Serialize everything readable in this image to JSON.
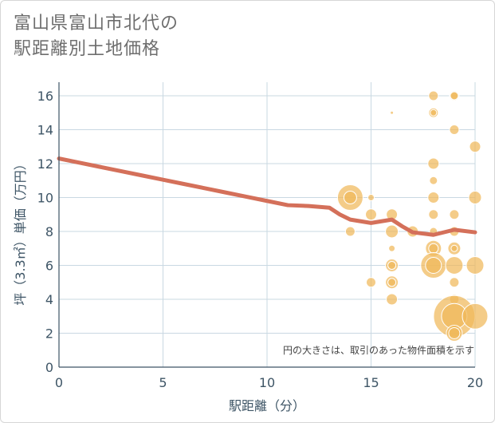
{
  "title_line1": "富山県富山市北代の",
  "title_line2": "駅距離別土地価格",
  "chart_data": {
    "type": "scatter",
    "title": "富山県富山市北代の駅距離別土地価格",
    "xlabel": "駅距離（分）",
    "ylabel": "坪（3.3㎡）単価（万円）",
    "xlim": [
      0,
      20
    ],
    "ylim": [
      0,
      16.8
    ],
    "xticks": [
      0,
      5,
      10,
      15,
      20
    ],
    "yticks": [
      0,
      2,
      4,
      6,
      8,
      10,
      12,
      14,
      16
    ],
    "note": "円の大きさは、取引のあった物件面積を示す",
    "colors": {
      "bubble": "#f0b95a",
      "line": "#d4705a",
      "grid": "#c9d8e2",
      "axis": "#3e5566"
    },
    "trend": {
      "x": [
        0,
        1,
        2,
        3,
        4,
        5,
        6,
        7,
        8,
        9,
        10,
        11,
        12,
        13,
        13.5,
        14,
        15,
        16,
        16.5,
        17,
        18,
        19,
        20
      ],
      "y": [
        12.3,
        12.05,
        11.8,
        11.55,
        11.3,
        11.05,
        10.8,
        10.55,
        10.3,
        10.05,
        9.8,
        9.55,
        9.5,
        9.4,
        9.0,
        8.7,
        8.5,
        8.7,
        8.3,
        7.95,
        7.8,
        8.1,
        7.95
      ]
    },
    "points": [
      {
        "x": 14,
        "y": 10,
        "r": 16
      },
      {
        "x": 14,
        "y": 10,
        "r": 8
      },
      {
        "x": 14,
        "y": 8,
        "r": 6
      },
      {
        "x": 15,
        "y": 10,
        "r": 4
      },
      {
        "x": 15,
        "y": 9,
        "r": 7
      },
      {
        "x": 15,
        "y": 5,
        "r": 6
      },
      {
        "x": 16,
        "y": 15,
        "r": 2
      },
      {
        "x": 16,
        "y": 9,
        "r": 7
      },
      {
        "x": 16,
        "y": 8,
        "r": 8
      },
      {
        "x": 16,
        "y": 7,
        "r": 4
      },
      {
        "x": 16,
        "y": 6,
        "r": 8
      },
      {
        "x": 16,
        "y": 6,
        "r": 5
      },
      {
        "x": 16,
        "y": 5,
        "r": 8
      },
      {
        "x": 16,
        "y": 5,
        "r": 5
      },
      {
        "x": 16,
        "y": 4,
        "r": 7
      },
      {
        "x": 17,
        "y": 8,
        "r": 7
      },
      {
        "x": 18,
        "y": 16,
        "r": 6
      },
      {
        "x": 18,
        "y": 15,
        "r": 6
      },
      {
        "x": 18,
        "y": 15,
        "r": 4
      },
      {
        "x": 18,
        "y": 12,
        "r": 7
      },
      {
        "x": 18,
        "y": 11,
        "r": 5
      },
      {
        "x": 18,
        "y": 10,
        "r": 7
      },
      {
        "x": 18,
        "y": 9,
        "r": 6
      },
      {
        "x": 18,
        "y": 8,
        "r": 5
      },
      {
        "x": 18,
        "y": 7,
        "r": 10
      },
      {
        "x": 18,
        "y": 7,
        "r": 6
      },
      {
        "x": 18,
        "y": 6,
        "r": 16
      },
      {
        "x": 18,
        "y": 6,
        "r": 10
      },
      {
        "x": 19,
        "y": 16,
        "r": 6
      },
      {
        "x": 19,
        "y": 16,
        "r": 5
      },
      {
        "x": 19,
        "y": 14,
        "r": 6
      },
      {
        "x": 19,
        "y": 9,
        "r": 6
      },
      {
        "x": 19,
        "y": 8,
        "r": 6
      },
      {
        "x": 19,
        "y": 7,
        "r": 8
      },
      {
        "x": 19,
        "y": 7,
        "r": 4
      },
      {
        "x": 19,
        "y": 6,
        "r": 11
      },
      {
        "x": 19,
        "y": 5,
        "r": 6
      },
      {
        "x": 19,
        "y": 4,
        "r": 6
      },
      {
        "x": 19,
        "y": 3,
        "r": 26
      },
      {
        "x": 19,
        "y": 3,
        "r": 16
      },
      {
        "x": 19,
        "y": 2,
        "r": 10
      },
      {
        "x": 19,
        "y": 2,
        "r": 7
      },
      {
        "x": 20,
        "y": 13,
        "r": 7
      },
      {
        "x": 20,
        "y": 10,
        "r": 8
      },
      {
        "x": 20,
        "y": 6,
        "r": 11
      },
      {
        "x": 20,
        "y": 3,
        "r": 16
      }
    ]
  }
}
